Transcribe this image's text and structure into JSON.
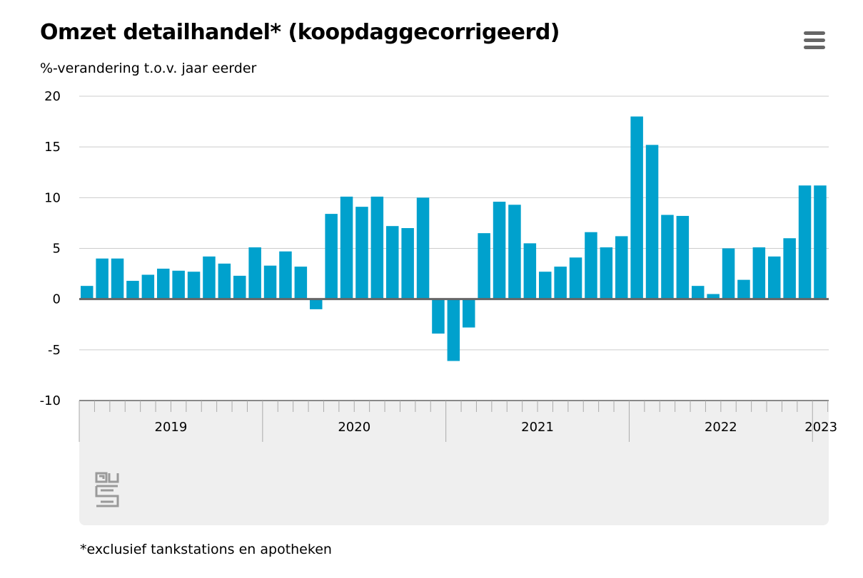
{
  "title": "Omzet detailhandel* (koopdaggecorrigeerd)",
  "subtitle": "%-verandering t.o.v. jaar eerder",
  "footnote": "*exclusief tankstations en apotheken",
  "menu": {
    "icon": "hamburger-menu-icon"
  },
  "logo": {
    "icon": "cbs-logo-icon"
  },
  "colors": {
    "bar": "#00a1cd",
    "grid": "#cccccc",
    "zero_line": "#666666",
    "axis_band": "#efefef"
  },
  "chart_data": {
    "type": "bar",
    "ylabel": "%-verandering t.o.v. jaar eerder",
    "ylim": [
      -10,
      20
    ],
    "yticks": [
      20,
      15,
      10,
      5,
      0,
      -5,
      -10
    ],
    "grid": true,
    "x_unit": "month",
    "x_start": "2019-01",
    "x_end": "2023-01",
    "year_labels": [
      "2019",
      "2020",
      "2021",
      "2022",
      "2023"
    ],
    "values": [
      1.3,
      4.0,
      4.0,
      1.8,
      2.4,
      3.0,
      2.8,
      2.7,
      4.2,
      3.5,
      2.3,
      5.1,
      3.3,
      4.7,
      3.2,
      -1.0,
      8.4,
      10.1,
      9.1,
      10.1,
      7.2,
      7.0,
      10.0,
      -3.4,
      -6.1,
      -2.8,
      6.5,
      9.6,
      9.3,
      5.5,
      2.7,
      3.2,
      4.1,
      6.6,
      5.1,
      6.2,
      18.0,
      15.2,
      8.3,
      8.2,
      1.3,
      0.5,
      5.0,
      1.9,
      5.1,
      4.2,
      6.0,
      11.2,
      11.2
    ]
  }
}
